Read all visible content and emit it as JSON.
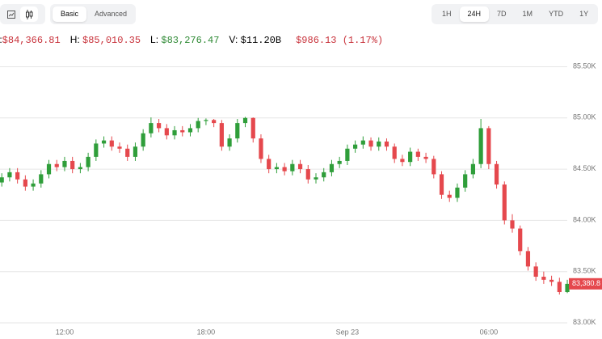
{
  "toolbar": {
    "modes": [
      "Basic",
      "Advanced"
    ],
    "ranges": [
      "1H",
      "24H",
      "7D",
      "1M",
      "YTD",
      "1Y"
    ]
  },
  "stats": [
    {
      "label": "O:",
      "value": "$84,366.81"
    },
    {
      "label": "H:",
      "value": "$85,010.35"
    },
    {
      "label": "L:",
      "value": "$83,276.47"
    },
    {
      "label": "V:",
      "value": "$11.20B"
    },
    {
      "value": "$986.13 (1.17%)"
    }
  ],
  "chart_data": {
    "type": "candlestick",
    "categories": [
      null,
      null,
      null,
      null,
      null,
      null,
      null,
      null,
      "12:00",
      null,
      null,
      null,
      null,
      null,
      null,
      null,
      null,
      null,
      null,
      null,
      null,
      null,
      null,
      null,
      null,
      null,
      "18:00",
      null,
      null,
      null,
      null,
      null,
      null,
      null,
      null,
      null,
      null,
      null,
      null,
      null,
      null,
      null,
      null,
      null,
      "Sep 23",
      null,
      null,
      null,
      null,
      null,
      null,
      null,
      null,
      null,
      null,
      null,
      null,
      null,
      null,
      null,
      null,
      null,
      "06:00",
      null,
      null,
      null,
      null,
      null,
      null,
      null,
      null,
      null,
      null
    ],
    "open": [
      84370,
      84420,
      84470,
      84400,
      84330,
      84360,
      84450,
      84550,
      84520,
      84580,
      84500,
      84520,
      84620,
      84750,
      84780,
      84720,
      84700,
      84620,
      84720,
      84850,
      84950,
      84900,
      84830,
      84880,
      84860,
      84900,
      84970,
      84980,
      84950,
      84720,
      84800,
      84950,
      85000,
      84800,
      84600,
      84500,
      84520,
      84480,
      84550,
      84500,
      84400,
      84420,
      84470,
      84550,
      84580,
      84700,
      84740,
      84780,
      84720,
      84770,
      84720,
      84600,
      84570,
      84670,
      84620,
      84600,
      84450,
      84250,
      84220,
      84320,
      84450,
      84550,
      84900,
      84550,
      84350,
      84000,
      83920,
      83700,
      83550,
      83450,
      83420,
      83400,
      83300
    ],
    "high": [
      84460,
      84510,
      84510,
      84440,
      84400,
      84490,
      84590,
      84590,
      84620,
      84620,
      84560,
      84660,
      84790,
      84820,
      84820,
      84760,
      84740,
      84760,
      84890,
      85005,
      84990,
      84940,
      84920,
      84920,
      84940,
      85000,
      84995,
      84990,
      84980,
      84840,
      84990,
      85010,
      85005,
      84840,
      84640,
      84560,
      84560,
      84590,
      84590,
      84540,
      84460,
      84510,
      84590,
      84620,
      84740,
      84780,
      84820,
      84810,
      84810,
      84800,
      84750,
      84640,
      84710,
      84700,
      84660,
      84630,
      84480,
      84290,
      84360,
      84490,
      84600,
      84990,
      84920,
      84580,
      84380,
      84060,
      83950,
      83740,
      83590,
      83500,
      83460,
      83440,
      83420
    ],
    "low": [
      84330,
      84380,
      84360,
      84290,
      84290,
      84320,
      84410,
      84480,
      84480,
      84460,
      84460,
      84480,
      84580,
      84710,
      84680,
      84660,
      84580,
      84580,
      84680,
      84810,
      84860,
      84790,
      84790,
      84820,
      84820,
      84860,
      84930,
      84910,
      84680,
      84680,
      84760,
      84910,
      84760,
      84560,
      84460,
      84460,
      84440,
      84440,
      84460,
      84360,
      84360,
      84380,
      84430,
      84510,
      84540,
      84660,
      84700,
      84680,
      84680,
      84680,
      84560,
      84530,
      84530,
      84580,
      84560,
      84410,
      84210,
      84180,
      84180,
      84280,
      84410,
      84510,
      84500,
      84310,
      83960,
      83880,
      83660,
      83510,
      83410,
      83380,
      83360,
      83276.47,
      83290
    ],
    "close": [
      84420,
      84470,
      84400,
      84330,
      84360,
      84450,
      84550,
      84520,
      84580,
      84500,
      84520,
      84620,
      84750,
      84780,
      84720,
      84700,
      84620,
      84720,
      84850,
      84950,
      84900,
      84830,
      84880,
      84860,
      84900,
      84970,
      84980,
      84950,
      84720,
      84800,
      84950,
      85000,
      84800,
      84600,
      84500,
      84520,
      84480,
      84550,
      84500,
      84400,
      84420,
      84470,
      84550,
      84580,
      84700,
      84740,
      84780,
      84720,
      84770,
      84720,
      84600,
      84570,
      84670,
      84620,
      84600,
      84450,
      84250,
      84220,
      84320,
      84450,
      84550,
      84900,
      84550,
      84350,
      84000,
      83920,
      83700,
      83550,
      83450,
      83420,
      83400,
      83300,
      83380
    ],
    "up_color": "#2f9e3a",
    "down_color": "#e5484d",
    "ylim": [
      83000,
      85630
    ],
    "yticks": [
      {
        "value": 83000,
        "label": "83.00K"
      },
      {
        "value": 83500,
        "label": "83.50K"
      },
      {
        "value": 84000,
        "label": "84.00K"
      },
      {
        "value": 84500,
        "label": "84.50K"
      },
      {
        "value": 85000,
        "label": "85.00K"
      },
      {
        "value": 85500,
        "label": "85.50K"
      }
    ],
    "last_price": {
      "value": 83380.8,
      "label": "83,380.8"
    },
    "grid": true
  }
}
